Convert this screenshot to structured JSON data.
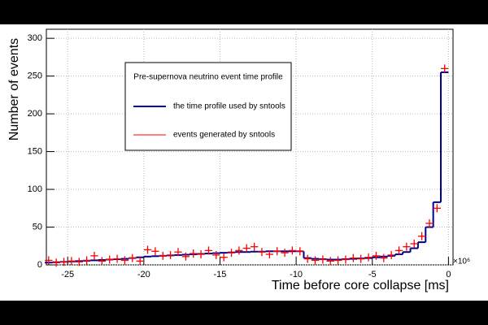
{
  "chart_data": {
    "type": "histogram",
    "title": "Pre-supernova neutrino event time profile",
    "xlabel": "Time before core collapse [ms]",
    "ylabel": "Number of events",
    "x_multiplier": "×10⁶",
    "bins": [
      -26.5,
      -26,
      -25.5,
      -25,
      -24.5,
      -24,
      -23.5,
      -23,
      -22.5,
      -22,
      -21.5,
      -21,
      -20.5,
      -20,
      -19.5,
      -19,
      -18.5,
      -18,
      -17.5,
      -17,
      -16.5,
      -16,
      -15.5,
      -15,
      -14.5,
      -14,
      -13.5,
      -13,
      -12.5,
      -12,
      -11.5,
      -11,
      -10.5,
      -10,
      -9.5,
      -9,
      -8.5,
      -8,
      -7.5,
      -7,
      -6.5,
      -6,
      -5.5,
      -5,
      -4.5,
      -4,
      -3.5,
      -3,
      -2.5,
      -2,
      -1.5,
      -1,
      -0.5,
      0
    ],
    "series": [
      {
        "name": "the time profile used by sntools",
        "color": "#00008b",
        "values": [
          3,
          3.5,
          4,
          4.5,
          5,
          5.5,
          6,
          6.5,
          7,
          7.5,
          8,
          9,
          10,
          11,
          11.5,
          12,
          12.5,
          13,
          13.5,
          14,
          14.5,
          15,
          15.5,
          16,
          16.5,
          17,
          17,
          17.5,
          17.5,
          18,
          18,
          18,
          18,
          18,
          9,
          8,
          7.5,
          7,
          7,
          7.5,
          8,
          8.5,
          9,
          10,
          11,
          12,
          14,
          17,
          22,
          30,
          50,
          83,
          255
        ]
      },
      {
        "name": "events generated by sntools",
        "color": "#ff0000",
        "values": [
          6,
          3,
          4,
          5,
          4,
          6,
          12,
          5,
          7,
          8,
          6,
          9,
          5,
          20,
          18,
          12,
          13,
          17,
          11,
          15,
          14,
          19,
          13,
          10,
          16,
          19,
          22,
          24,
          17,
          14,
          18,
          16,
          19,
          18,
          8,
          6,
          7,
          5,
          6,
          7,
          9,
          8,
          10,
          12,
          9,
          13,
          19,
          24,
          28,
          38,
          55,
          75,
          260
        ]
      }
    ],
    "xlim": [
      -26.4,
      0.3
    ],
    "ylim": [
      0,
      312
    ],
    "xticks": [
      -25,
      -20,
      -15,
      -10,
      -5,
      0
    ],
    "yticks": [
      0,
      50,
      100,
      150,
      200,
      250,
      300
    ],
    "grid": true
  }
}
